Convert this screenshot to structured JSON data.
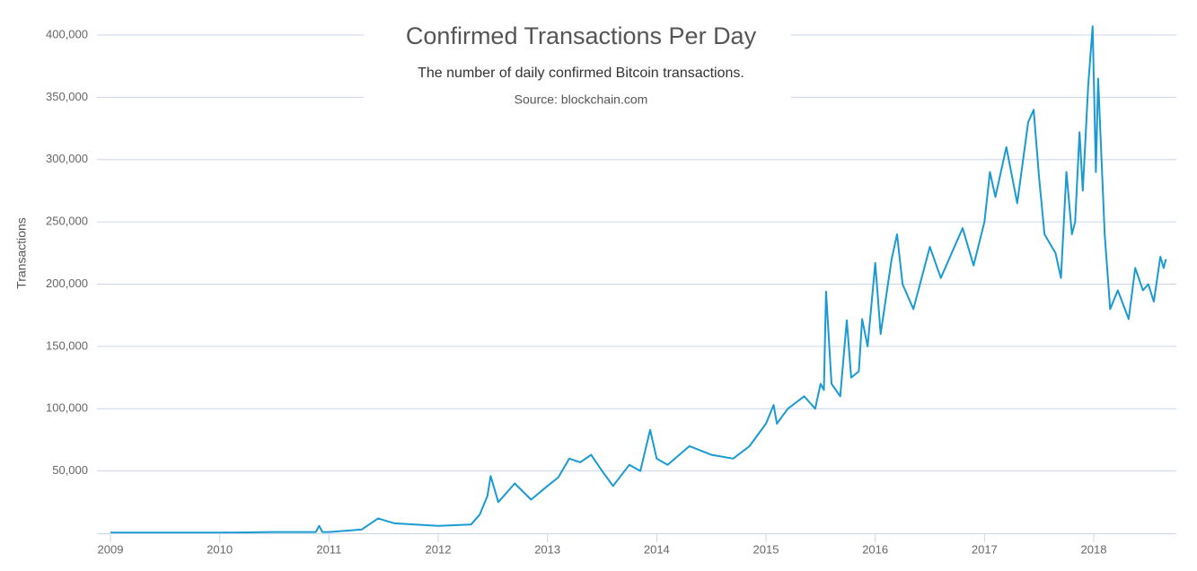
{
  "chart_data": {
    "type": "line",
    "title": "Confirmed Transactions Per Day",
    "subtitle": "The number of daily confirmed Bitcoin transactions.",
    "source": "Source: blockchain.com",
    "y_label": "Transactions",
    "xlim": [
      2009,
      2018.75
    ],
    "xticks": [
      2009,
      2010,
      2011,
      2012,
      2013,
      2014,
      2015,
      2016,
      2017,
      2018
    ],
    "ylim": [
      0,
      410000
    ],
    "yticks": [
      {
        "value": 50000,
        "label": "50,000"
      },
      {
        "value": 100000,
        "label": "100,000"
      },
      {
        "value": 150000,
        "label": "150,000"
      },
      {
        "value": 200000,
        "label": "200,000"
      },
      {
        "value": 250000,
        "label": "250,000"
      },
      {
        "value": 300000,
        "label": "300,000"
      },
      {
        "value": 350000,
        "label": "350,000"
      },
      {
        "value": 400000,
        "label": "400,000"
      }
    ],
    "grid": true,
    "series": [
      {
        "name": "Transactions",
        "color": "#199ad2",
        "x": [
          2009.0,
          2009.5,
          2010.0,
          2010.5,
          2010.88,
          2010.91,
          2010.94,
          2011.0,
          2011.3,
          2011.45,
          2011.6,
          2012.0,
          2012.3,
          2012.38,
          2012.45,
          2012.48,
          2012.55,
          2012.7,
          2012.85,
          2013.0,
          2013.1,
          2013.2,
          2013.3,
          2013.4,
          2013.5,
          2013.6,
          2013.75,
          2013.85,
          2013.94,
          2014.0,
          2014.1,
          2014.3,
          2014.5,
          2014.7,
          2014.85,
          2015.0,
          2015.07,
          2015.1,
          2015.2,
          2015.35,
          2015.45,
          2015.5,
          2015.53,
          2015.55,
          2015.6,
          2015.68,
          2015.74,
          2015.78,
          2015.85,
          2015.88,
          2015.93,
          2016.0,
          2016.05,
          2016.15,
          2016.2,
          2016.25,
          2016.35,
          2016.5,
          2016.6,
          2016.8,
          2016.9,
          2017.0,
          2017.05,
          2017.1,
          2017.2,
          2017.3,
          2017.4,
          2017.45,
          2017.5,
          2017.55,
          2017.65,
          2017.7,
          2017.75,
          2017.8,
          2017.83,
          2017.87,
          2017.9,
          2017.95,
          2017.99,
          2018.02,
          2018.04,
          2018.1,
          2018.15,
          2018.22,
          2018.32,
          2018.38,
          2018.45,
          2018.5,
          2018.55,
          2018.61,
          2018.64,
          2018.66
        ],
        "values": [
          500,
          500,
          500,
          1000,
          1000,
          6000,
          1000,
          1000,
          3000,
          12000,
          8000,
          6000,
          7000,
          15000,
          30000,
          46000,
          25000,
          40000,
          27000,
          38000,
          45000,
          60000,
          57000,
          63000,
          50000,
          38000,
          55000,
          50000,
          83000,
          60000,
          55000,
          70000,
          63000,
          60000,
          70000,
          88000,
          103000,
          88000,
          100000,
          110000,
          100000,
          120000,
          115000,
          194000,
          120000,
          110000,
          171000,
          125000,
          130000,
          172000,
          150000,
          217000,
          160000,
          220000,
          240000,
          200000,
          180000,
          230000,
          205000,
          245000,
          215000,
          250000,
          290000,
          270000,
          310000,
          265000,
          330000,
          340000,
          285000,
          240000,
          225000,
          205000,
          290000,
          240000,
          250000,
          322000,
          275000,
          360000,
          407000,
          290000,
          365000,
          240000,
          180000,
          195000,
          172000,
          213000,
          195000,
          200000,
          186000,
          222000,
          213000,
          220000
        ]
      }
    ]
  }
}
